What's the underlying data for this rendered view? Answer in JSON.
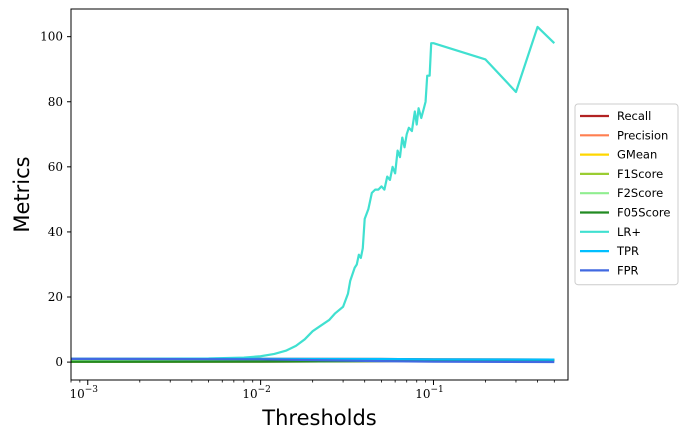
{
  "chart_data": {
    "type": "line",
    "xlabel": "Thresholds",
    "ylabel": "Metrics",
    "x_scale": "log",
    "xlim": [
      0.0008,
      0.6
    ],
    "ylim": [
      -5.5,
      108.5
    ],
    "x_ticks": [
      {
        "value": 0.001,
        "base": "10",
        "exp": "−3"
      },
      {
        "value": 0.01,
        "base": "10",
        "exp": "−2"
      },
      {
        "value": 0.1,
        "base": "10",
        "exp": "−1"
      }
    ],
    "y_ticks": [
      0,
      20,
      40,
      60,
      80,
      100
    ],
    "grid": false,
    "legend_position": "right, outside",
    "series": [
      {
        "name": "Recall",
        "color": "#b22222",
        "x": [
          0.0008,
          0.01,
          0.05,
          0.1,
          0.5
        ],
        "y": [
          1,
          1,
          0.95,
          0.85,
          0.75
        ]
      },
      {
        "name": "Precision",
        "color": "#ff7f50",
        "x": [
          0.0008,
          0.01,
          0.05,
          0.1,
          0.5
        ],
        "y": [
          0.1,
          0.15,
          0.3,
          0.45,
          0.6
        ]
      },
      {
        "name": "GMean",
        "color": "#ffd700",
        "x": [
          0.0008,
          0.01,
          0.05,
          0.1,
          0.5
        ],
        "y": [
          0.2,
          0.3,
          0.5,
          0.6,
          0.7
        ]
      },
      {
        "name": "F1Score",
        "color": "#9acd32",
        "x": [
          0.0008,
          0.01,
          0.05,
          0.1,
          0.5
        ],
        "y": [
          0.15,
          0.2,
          0.35,
          0.5,
          0.6
        ]
      },
      {
        "name": "F2Score",
        "color": "#90ee90",
        "x": [
          0.0008,
          0.01,
          0.05,
          0.1,
          0.5
        ],
        "y": [
          0.35,
          0.4,
          0.55,
          0.6,
          0.65
        ]
      },
      {
        "name": "F05Score",
        "color": "#228b22",
        "x": [
          0.0008,
          0.01,
          0.05,
          0.1,
          0.5
        ],
        "y": [
          0.1,
          0.15,
          0.3,
          0.45,
          0.55
        ]
      },
      {
        "name": "LR+",
        "color": "#40e0d0",
        "x": [
          0.0008,
          0.002,
          0.005,
          0.008,
          0.01,
          0.012,
          0.014,
          0.016,
          0.018,
          0.02,
          0.022,
          0.025,
          0.027,
          0.03,
          0.032,
          0.033,
          0.035,
          0.036,
          0.037,
          0.038,
          0.039,
          0.04,
          0.042,
          0.044,
          0.046,
          0.048,
          0.05,
          0.052,
          0.054,
          0.056,
          0.058,
          0.06,
          0.062,
          0.064,
          0.066,
          0.068,
          0.07,
          0.072,
          0.075,
          0.078,
          0.08,
          0.082,
          0.085,
          0.088,
          0.09,
          0.092,
          0.095,
          0.097,
          0.1,
          0.2,
          0.3,
          0.4,
          0.5
        ],
        "y": [
          1,
          1,
          1.1,
          1.4,
          1.8,
          2.5,
          3.5,
          5,
          7,
          9.5,
          11,
          13,
          15,
          17,
          21,
          25,
          29,
          30,
          33,
          32,
          35,
          44,
          47,
          52,
          53,
          53,
          54,
          53,
          57,
          56,
          60,
          58,
          65,
          63,
          69,
          66,
          70,
          72,
          71,
          77,
          73,
          78,
          75,
          78,
          80,
          88,
          88,
          98,
          98,
          93,
          83,
          103,
          98
        ]
      },
      {
        "name": "TPR",
        "color": "#00bfff",
        "x": [
          0.0008,
          0.01,
          0.05,
          0.1,
          0.5
        ],
        "y": [
          1,
          1,
          0.95,
          0.85,
          0.75
        ]
      },
      {
        "name": "FPR",
        "color": "#4169e1",
        "x": [
          0.0008,
          0.01,
          0.05,
          0.1,
          0.5
        ],
        "y": [
          1,
          0.85,
          0.3,
          0.12,
          0.03
        ]
      }
    ]
  }
}
